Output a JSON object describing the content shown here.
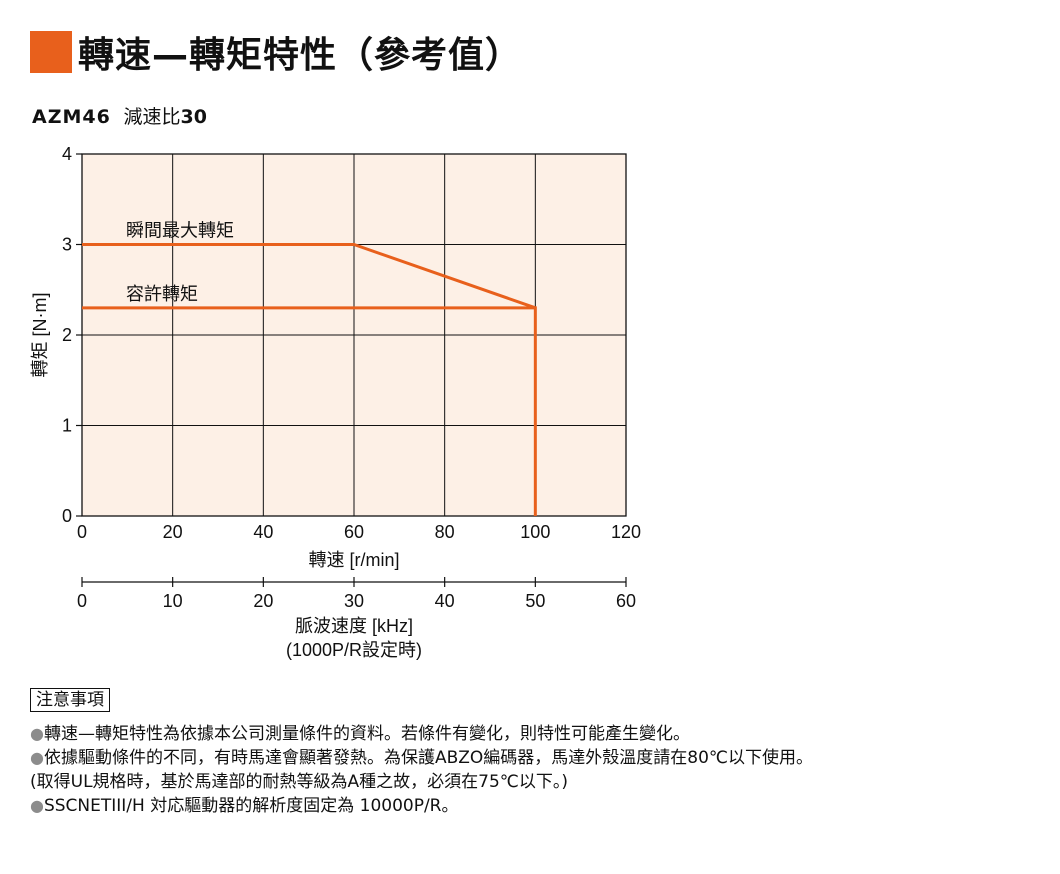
{
  "header": {
    "title": "轉速—轉矩特性（參考值）",
    "accent_color": "#e8601c",
    "model": "AZM46",
    "ratio_label": "減速比",
    "ratio_value": "30"
  },
  "chart_data": {
    "type": "line",
    "xlabel": "轉速 [r/min]",
    "ylabel": "轉矩 [N·m]",
    "xlim": [
      0,
      120
    ],
    "ylim": [
      0,
      4
    ],
    "xticks": [
      0,
      20,
      40,
      60,
      80,
      100,
      120
    ],
    "yticks": [
      0,
      1,
      2,
      3,
      4
    ],
    "grid": true,
    "plot_background": "#fdf0e6",
    "line_color": "#e8601c",
    "series": [
      {
        "name": "瞬間最大轉矩",
        "x": [
          0,
          60,
          100
        ],
        "y": [
          3.0,
          3.0,
          2.3
        ]
      },
      {
        "name": "容許轉矩",
        "x": [
          0,
          100,
          100
        ],
        "y": [
          2.3,
          2.3,
          0
        ]
      }
    ],
    "secondary_axis": {
      "label_line1": "脈波速度 [kHz]",
      "label_line2": "(1000P/R設定時)",
      "ticks": [
        0,
        10,
        20,
        30,
        40,
        50,
        60
      ]
    }
  },
  "notes": {
    "header": "注意事項",
    "bullet_glyph": "●",
    "lines": [
      {
        "bullet": true,
        "text": "轉速—轉矩特性為依據本公司測量條件的資料。若條件有變化，則特性可能產生變化。"
      },
      {
        "bullet": true,
        "text": "依據驅動條件的不同，有時馬達會顯著發熱。為保護ABZO編碼器，馬達外殼溫度請在80℃以下使用。"
      },
      {
        "bullet": false,
        "text": "(取得UL規格時，基於馬達部的耐熱等級為A種之故，必須在75℃以下。)"
      },
      {
        "bullet": true,
        "text": "SSCNETIII/H 対応驅動器的解析度固定為 10000P/R。"
      }
    ]
  }
}
